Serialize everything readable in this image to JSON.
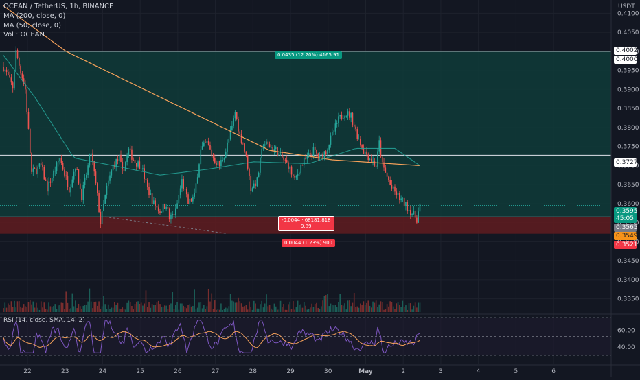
{
  "header": {
    "symbol": "OCEAN / TetherUS, 1h, BINANCE",
    "ma200": "MA (200, close, 0)",
    "ma50": "MA (50, close, 0)",
    "vol": "Vol · OCEAN",
    "currency": "USDT",
    "rsi_label": "RSI (14, close, SMA, 14, 2)"
  },
  "colors": {
    "background": "#131722",
    "up": "#26a69a",
    "down": "#ef5350",
    "ma200": "#f7a25a",
    "ma50": "#26a69a",
    "rsi": "#7e57c2",
    "rsi_ma": "#f7a25a",
    "long_zone": "#1b4f4b",
    "short_zone": "#6e2226"
  },
  "badges": {
    "target": "0.0435 (12.20%) 4165.91",
    "measure_line1": "-0.0044 · 68181.818",
    "measure_line2": "9.89",
    "stop": "0.0044 (1.23%) 900"
  },
  "price_tags": {
    "p4002": "0.4002",
    "p4000": "0.4000",
    "p3727": "0.3727",
    "p3595": "0.3595",
    "countdown": "45:05",
    "p3565": "0.3565",
    "p3549": "0.3549",
    "p3521": "0.3521"
  },
  "chart_data": {
    "type": "candlestick",
    "title": "OCEAN / TetherUS, 1h, BINANCE",
    "y_unit": "USDT",
    "ylim": [
      0.3315,
      0.4135
    ],
    "y_ticks": [
      "0.4100",
      "0.4050",
      "0.4000",
      "0.3950",
      "0.3900",
      "0.3850",
      "0.3800",
      "0.3750",
      "0.3700",
      "0.3650",
      "0.3600",
      "0.3550",
      "0.3500",
      "0.3450",
      "0.3400",
      "0.3350"
    ],
    "x_ticks": [
      "22",
      "23",
      "24",
      "25",
      "26",
      "27",
      "28",
      "29",
      "30",
      "May",
      "2",
      "3",
      "4",
      "5",
      "6"
    ],
    "rsi_ticks": [
      "60.00",
      "40.00"
    ],
    "horizontal_lines": [
      0.4,
      0.3727
    ],
    "position_zone": {
      "entry": 0.3565,
      "target": 0.4,
      "stop": 0.3521
    },
    "last_price": 0.3595,
    "close_anchors": [
      [
        0,
        0.396
      ],
      [
        6,
        0.3905
      ],
      [
        8,
        0.3998
      ],
      [
        14,
        0.39
      ],
      [
        18,
        0.368
      ],
      [
        24,
        0.37
      ],
      [
        28,
        0.364
      ],
      [
        32,
        0.368
      ],
      [
        36,
        0.372
      ],
      [
        42,
        0.364
      ],
      [
        46,
        0.37
      ],
      [
        50,
        0.362
      ],
      [
        56,
        0.3735
      ],
      [
        60,
        0.362
      ],
      [
        62,
        0.355
      ],
      [
        66,
        0.364
      ],
      [
        70,
        0.37
      ],
      [
        74,
        0.372
      ],
      [
        76,
        0.368
      ],
      [
        80,
        0.374
      ],
      [
        84,
        0.371
      ],
      [
        88,
        0.37
      ],
      [
        92,
        0.364
      ],
      [
        96,
        0.36
      ],
      [
        100,
        0.358
      ],
      [
        104,
        0.36
      ],
      [
        106,
        0.356
      ],
      [
        110,
        0.358
      ],
      [
        114,
        0.366
      ],
      [
        118,
        0.36
      ],
      [
        122,
        0.362
      ],
      [
        126,
        0.374
      ],
      [
        130,
        0.376
      ],
      [
        134,
        0.372
      ],
      [
        138,
        0.37
      ],
      [
        142,
        0.374
      ],
      [
        146,
        0.38
      ],
      [
        148,
        0.384
      ],
      [
        151,
        0.378
      ],
      [
        153,
        0.376
      ],
      [
        156,
        0.37
      ],
      [
        158,
        0.364
      ],
      [
        162,
        0.366
      ],
      [
        166,
        0.376
      ],
      [
        170,
        0.375
      ],
      [
        174,
        0.374
      ],
      [
        178,
        0.372
      ],
      [
        182,
        0.37
      ],
      [
        186,
        0.366
      ],
      [
        190,
        0.37
      ],
      [
        194,
        0.372
      ],
      [
        198,
        0.374
      ],
      [
        202,
        0.372
      ],
      [
        206,
        0.374
      ],
      [
        210,
        0.378
      ],
      [
        214,
        0.382
      ],
      [
        218,
        0.384
      ],
      [
        222,
        0.383
      ],
      [
        226,
        0.378
      ],
      [
        230,
        0.374
      ],
      [
        234,
        0.372
      ],
      [
        238,
        0.37
      ],
      [
        240,
        0.376
      ],
      [
        242,
        0.37
      ],
      [
        244,
        0.368
      ],
      [
        248,
        0.364
      ],
      [
        252,
        0.362
      ],
      [
        256,
        0.36
      ],
      [
        260,
        0.358
      ],
      [
        264,
        0.356
      ],
      [
        266,
        0.3595
      ]
    ],
    "ma200_anchors": [
      [
        0,
        0.412
      ],
      [
        40,
        0.4
      ],
      [
        80,
        0.392
      ],
      [
        130,
        0.382
      ],
      [
        170,
        0.374
      ],
      [
        210,
        0.3715
      ],
      [
        266,
        0.37
      ]
    ],
    "ma50_anchors": [
      [
        0,
        0.399
      ],
      [
        20,
        0.388
      ],
      [
        45,
        0.372
      ],
      [
        70,
        0.37
      ],
      [
        100,
        0.3675
      ],
      [
        130,
        0.369
      ],
      [
        160,
        0.371
      ],
      [
        195,
        0.3705
      ],
      [
        225,
        0.3745
      ],
      [
        250,
        0.3745
      ],
      [
        266,
        0.37
      ]
    ]
  }
}
